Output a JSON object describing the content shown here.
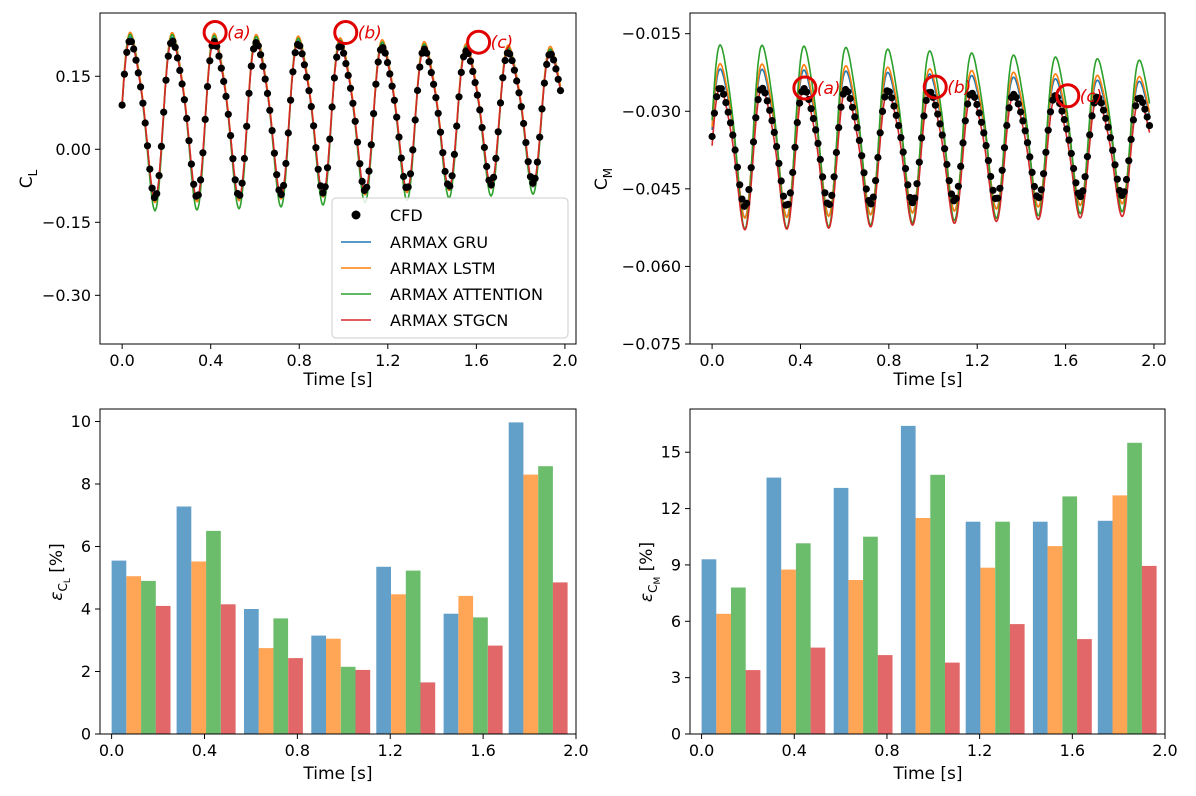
{
  "colors": {
    "cfd": "#000000",
    "gru": "#1f77b4",
    "lstm": "#ff7f0e",
    "attention": "#2ca02c",
    "stgcn": "#d62728",
    "annotation": "#e00000"
  },
  "legend": [
    "CFD",
    "ARMAX GRU",
    "ARMAX LSTM",
    "ARMAX ATTENTION",
    "ARMAX STGCN"
  ],
  "chart_data": [
    {
      "id": "cl",
      "type": "line",
      "title": "",
      "xlabel": "Time [s]",
      "ylabel": "C",
      "ylabel_sub": "L",
      "xlim": [
        -0.1,
        2.05
      ],
      "ylim": [
        -0.4,
        0.28
      ],
      "xticks": [
        0.0,
        0.4,
        0.8,
        1.2,
        1.6,
        2.0
      ],
      "xtick_labels": [
        "0.0",
        "0.4",
        "0.8",
        "1.2",
        "1.6",
        "2.0"
      ],
      "yticks": [
        0.15,
        0.0,
        -0.15,
        -0.3
      ],
      "ytick_labels": [
        "0.15",
        "0.00",
        "−0.15",
        "−0.30"
      ],
      "signal": {
        "offset": 0.075,
        "amp": 0.155,
        "freq": 5.27,
        "phase": 0.0
      },
      "series": [
        {
          "name": "CFD",
          "kind": "scatter",
          "amp_scale": 1.0,
          "offset_shift": 0.0
        },
        {
          "name": "ARMAX GRU",
          "kind": "line",
          "amp_scale": 1.05,
          "offset_shift": 0.0
        },
        {
          "name": "ARMAX LSTM",
          "kind": "line",
          "amp_scale": 1.08,
          "offset_shift": 0.005
        },
        {
          "name": "ARMAX ATTENTION",
          "kind": "line",
          "amp_scale": 1.12,
          "offset_shift": -0.005
        },
        {
          "name": "ARMAX STGCN",
          "kind": "line",
          "amp_scale": 1.02,
          "offset_shift": 0.0
        }
      ],
      "annotations": [
        {
          "label": "(a)",
          "x": 0.42,
          "y": 0.24
        },
        {
          "label": "(b)",
          "x": 1.01,
          "y": 0.24
        },
        {
          "label": "(c)",
          "x": 1.61,
          "y": 0.22
        }
      ]
    },
    {
      "id": "cm",
      "type": "line",
      "title": "",
      "xlabel": "Time [s]",
      "ylabel": "C",
      "ylabel_sub": "M",
      "xlim": [
        -0.1,
        2.05
      ],
      "ylim": [
        -0.075,
        -0.011
      ],
      "xticks": [
        0.0,
        0.4,
        0.8,
        1.2,
        1.6,
        2.0
      ],
      "xtick_labels": [
        "0.0",
        "0.4",
        "0.8",
        "1.2",
        "1.6",
        "2.0"
      ],
      "yticks": [
        -0.015,
        -0.03,
        -0.045,
        -0.06,
        -0.075
      ],
      "ytick_labels": [
        "−0.015",
        "−0.030",
        "−0.045",
        "−0.060",
        "−0.075"
      ],
      "signal": {
        "offset": -0.036,
        "amp": 0.011,
        "freq": 5.27,
        "phase": 0.0
      },
      "series": [
        {
          "name": "CFD",
          "kind": "scatter",
          "amp_scale": 1.0,
          "offset_shift": 0.0
        },
        {
          "name": "ARMAX GRU",
          "kind": "line",
          "amp_scale": 1.25,
          "offset_shift": 0.001
        },
        {
          "name": "ARMAX LSTM",
          "kind": "line",
          "amp_scale": 1.3,
          "offset_shift": 0.0015
        },
        {
          "name": "ARMAX ATTENTION",
          "kind": "line",
          "amp_scale": 1.55,
          "offset_shift": 0.0025
        },
        {
          "name": "ARMAX STGCN",
          "kind": "line",
          "amp_scale": 1.2,
          "offset_shift": -0.002
        }
      ],
      "annotations": [
        {
          "label": "(a)",
          "x": 0.42,
          "y": -0.0255
        },
        {
          "label": "(b)",
          "x": 1.01,
          "y": -0.0253
        },
        {
          "label": "(c)",
          "x": 1.61,
          "y": -0.027
        }
      ]
    },
    {
      "id": "ecl",
      "type": "bar",
      "title": "",
      "xlabel": "Time [s]",
      "ylabel": "ε",
      "ylabel_sub": "C",
      "ylabel_subsub": "L",
      "ylabel_suffix": " [%]",
      "xlim": [
        -0.05,
        2.0
      ],
      "ylim": [
        0,
        10.4
      ],
      "xticks": [
        0.0,
        0.4,
        0.8,
        1.2,
        1.6,
        2.0
      ],
      "xtick_labels": [
        "0.0",
        "0.4",
        "0.8",
        "1.2",
        "1.6",
        "2.0"
      ],
      "yticks": [
        0,
        2,
        4,
        6,
        8,
        10
      ],
      "ytick_labels": [
        "0",
        "2",
        "4",
        "6",
        "8",
        "10"
      ],
      "group_starts": [
        0.0,
        0.28,
        0.57,
        0.86,
        1.14,
        1.43,
        1.71
      ],
      "bar_width": 0.0635,
      "series": [
        {
          "name": "ARMAX GRU",
          "values": [
            5.55,
            7.28,
            4.0,
            3.15,
            5.35,
            3.85,
            9.97
          ]
        },
        {
          "name": "ARMAX LSTM",
          "values": [
            5.05,
            5.52,
            2.75,
            3.05,
            4.47,
            4.42,
            8.3
          ]
        },
        {
          "name": "ARMAX ATTENTION",
          "values": [
            4.9,
            6.5,
            3.7,
            2.15,
            5.23,
            3.73,
            8.57
          ]
        },
        {
          "name": "ARMAX STGCN",
          "values": [
            4.1,
            4.15,
            2.43,
            2.05,
            1.65,
            2.83,
            4.85
          ]
        }
      ]
    },
    {
      "id": "ecm",
      "type": "bar",
      "title": "",
      "xlabel": "Time [s]",
      "ylabel": "ε",
      "ylabel_sub": "C",
      "ylabel_subsub": "M",
      "ylabel_suffix": " [%]",
      "xlim": [
        -0.05,
        2.0
      ],
      "ylim": [
        0,
        17.3
      ],
      "xticks": [
        0.0,
        0.4,
        0.8,
        1.2,
        1.6,
        2.0
      ],
      "xtick_labels": [
        "0.0",
        "0.4",
        "0.8",
        "1.2",
        "1.6",
        "2.0"
      ],
      "yticks": [
        0,
        3,
        6,
        9,
        12,
        15
      ],
      "ytick_labels": [
        "0",
        "3",
        "6",
        "9",
        "12",
        "15"
      ],
      "group_starts": [
        0.0,
        0.28,
        0.57,
        0.86,
        1.14,
        1.43,
        1.71
      ],
      "bar_width": 0.0635,
      "series": [
        {
          "name": "ARMAX GRU",
          "values": [
            9.3,
            13.65,
            13.1,
            16.4,
            11.3,
            11.3,
            11.35
          ]
        },
        {
          "name": "ARMAX LSTM",
          "values": [
            6.4,
            8.75,
            8.2,
            11.5,
            8.85,
            10.0,
            12.7
          ]
        },
        {
          "name": "ARMAX ATTENTION",
          "values": [
            7.8,
            10.15,
            10.5,
            13.8,
            11.3,
            12.65,
            15.5
          ]
        },
        {
          "name": "ARMAX STGCN",
          "values": [
            3.4,
            4.6,
            4.2,
            3.8,
            5.85,
            5.05,
            8.95
          ]
        }
      ]
    }
  ]
}
